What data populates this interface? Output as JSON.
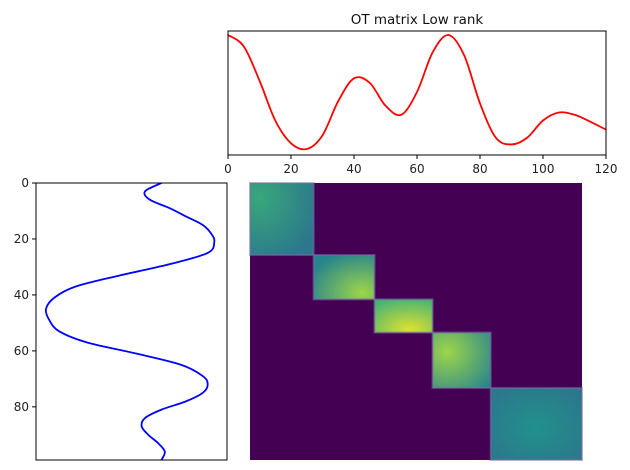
{
  "chart_data": [
    {
      "type": "line",
      "panel": "top",
      "title": "OT matrix Low rank",
      "xlabel": "",
      "ylabel": "",
      "xlim": [
        0,
        120
      ],
      "x_ticks": [
        0,
        20,
        40,
        60,
        80,
        100,
        120
      ],
      "y_axis_visible": false,
      "grid": false,
      "color": "#ff0000",
      "series": [
        {
          "x": [
            0,
            5,
            10,
            15,
            20,
            25,
            30,
            35,
            40,
            45,
            50,
            55,
            60,
            65,
            70,
            75,
            80,
            85,
            90,
            95,
            100,
            105,
            110,
            115,
            120
          ],
          "values": [
            1.0,
            0.9,
            0.6,
            0.25,
            0.05,
            0.0,
            0.12,
            0.42,
            0.62,
            0.58,
            0.38,
            0.3,
            0.5,
            0.85,
            1.0,
            0.82,
            0.4,
            0.1,
            0.04,
            0.1,
            0.25,
            0.32,
            0.3,
            0.24,
            0.17
          ]
        }
      ]
    },
    {
      "type": "line",
      "panel": "left",
      "title": "",
      "xlabel": "",
      "ylabel": "",
      "ylim": [
        99,
        0
      ],
      "y_ticks": [
        0,
        20,
        40,
        60,
        80
      ],
      "x_axis_visible": false,
      "grid": false,
      "color": "#0000ff",
      "series": [
        {
          "y": [
            0,
            3,
            6,
            9,
            12,
            15,
            18,
            21,
            25,
            29,
            33,
            37,
            41,
            45,
            49,
            53,
            57,
            61,
            65,
            69,
            72,
            75,
            78,
            81,
            84,
            87,
            90,
            93,
            96,
            99
          ],
          "values": [
            0.7,
            0.6,
            0.63,
            0.75,
            0.85,
            0.95,
            1.0,
            1.02,
            0.98,
            0.75,
            0.45,
            0.18,
            0.05,
            0.0,
            0.02,
            0.08,
            0.25,
            0.55,
            0.82,
            0.95,
            0.98,
            0.95,
            0.85,
            0.7,
            0.6,
            0.58,
            0.62,
            0.68,
            0.72,
            0.7
          ]
        }
      ]
    },
    {
      "type": "heatmap",
      "panel": "main",
      "title": "",
      "rows": 100,
      "cols": 120,
      "colormap": "viridis",
      "background": "#440154",
      "blocks": [
        {
          "rows": [
            0,
            26
          ],
          "cols": [
            0,
            23
          ],
          "peak": [
            0.15,
            0.2
          ],
          "value_peak": 0.6,
          "value_edge": 0.4
        },
        {
          "rows": [
            26,
            42
          ],
          "cols": [
            23,
            45
          ],
          "peak": [
            0.8,
            0.85
          ],
          "value_peak": 0.85,
          "value_edge": 0.45
        },
        {
          "rows": [
            42,
            54
          ],
          "cols": [
            45,
            66
          ],
          "peak": [
            0.6,
            0.9
          ],
          "value_peak": 0.95,
          "value_edge": 0.65
        },
        {
          "rows": [
            54,
            74
          ],
          "cols": [
            66,
            87
          ],
          "peak": [
            0.25,
            0.35
          ],
          "value_peak": 0.85,
          "value_edge": 0.45
        },
        {
          "rows": [
            74,
            100
          ],
          "cols": [
            87,
            120
          ],
          "peak": [
            0.5,
            0.55
          ],
          "value_peak": 0.5,
          "value_edge": 0.35
        }
      ]
    }
  ]
}
